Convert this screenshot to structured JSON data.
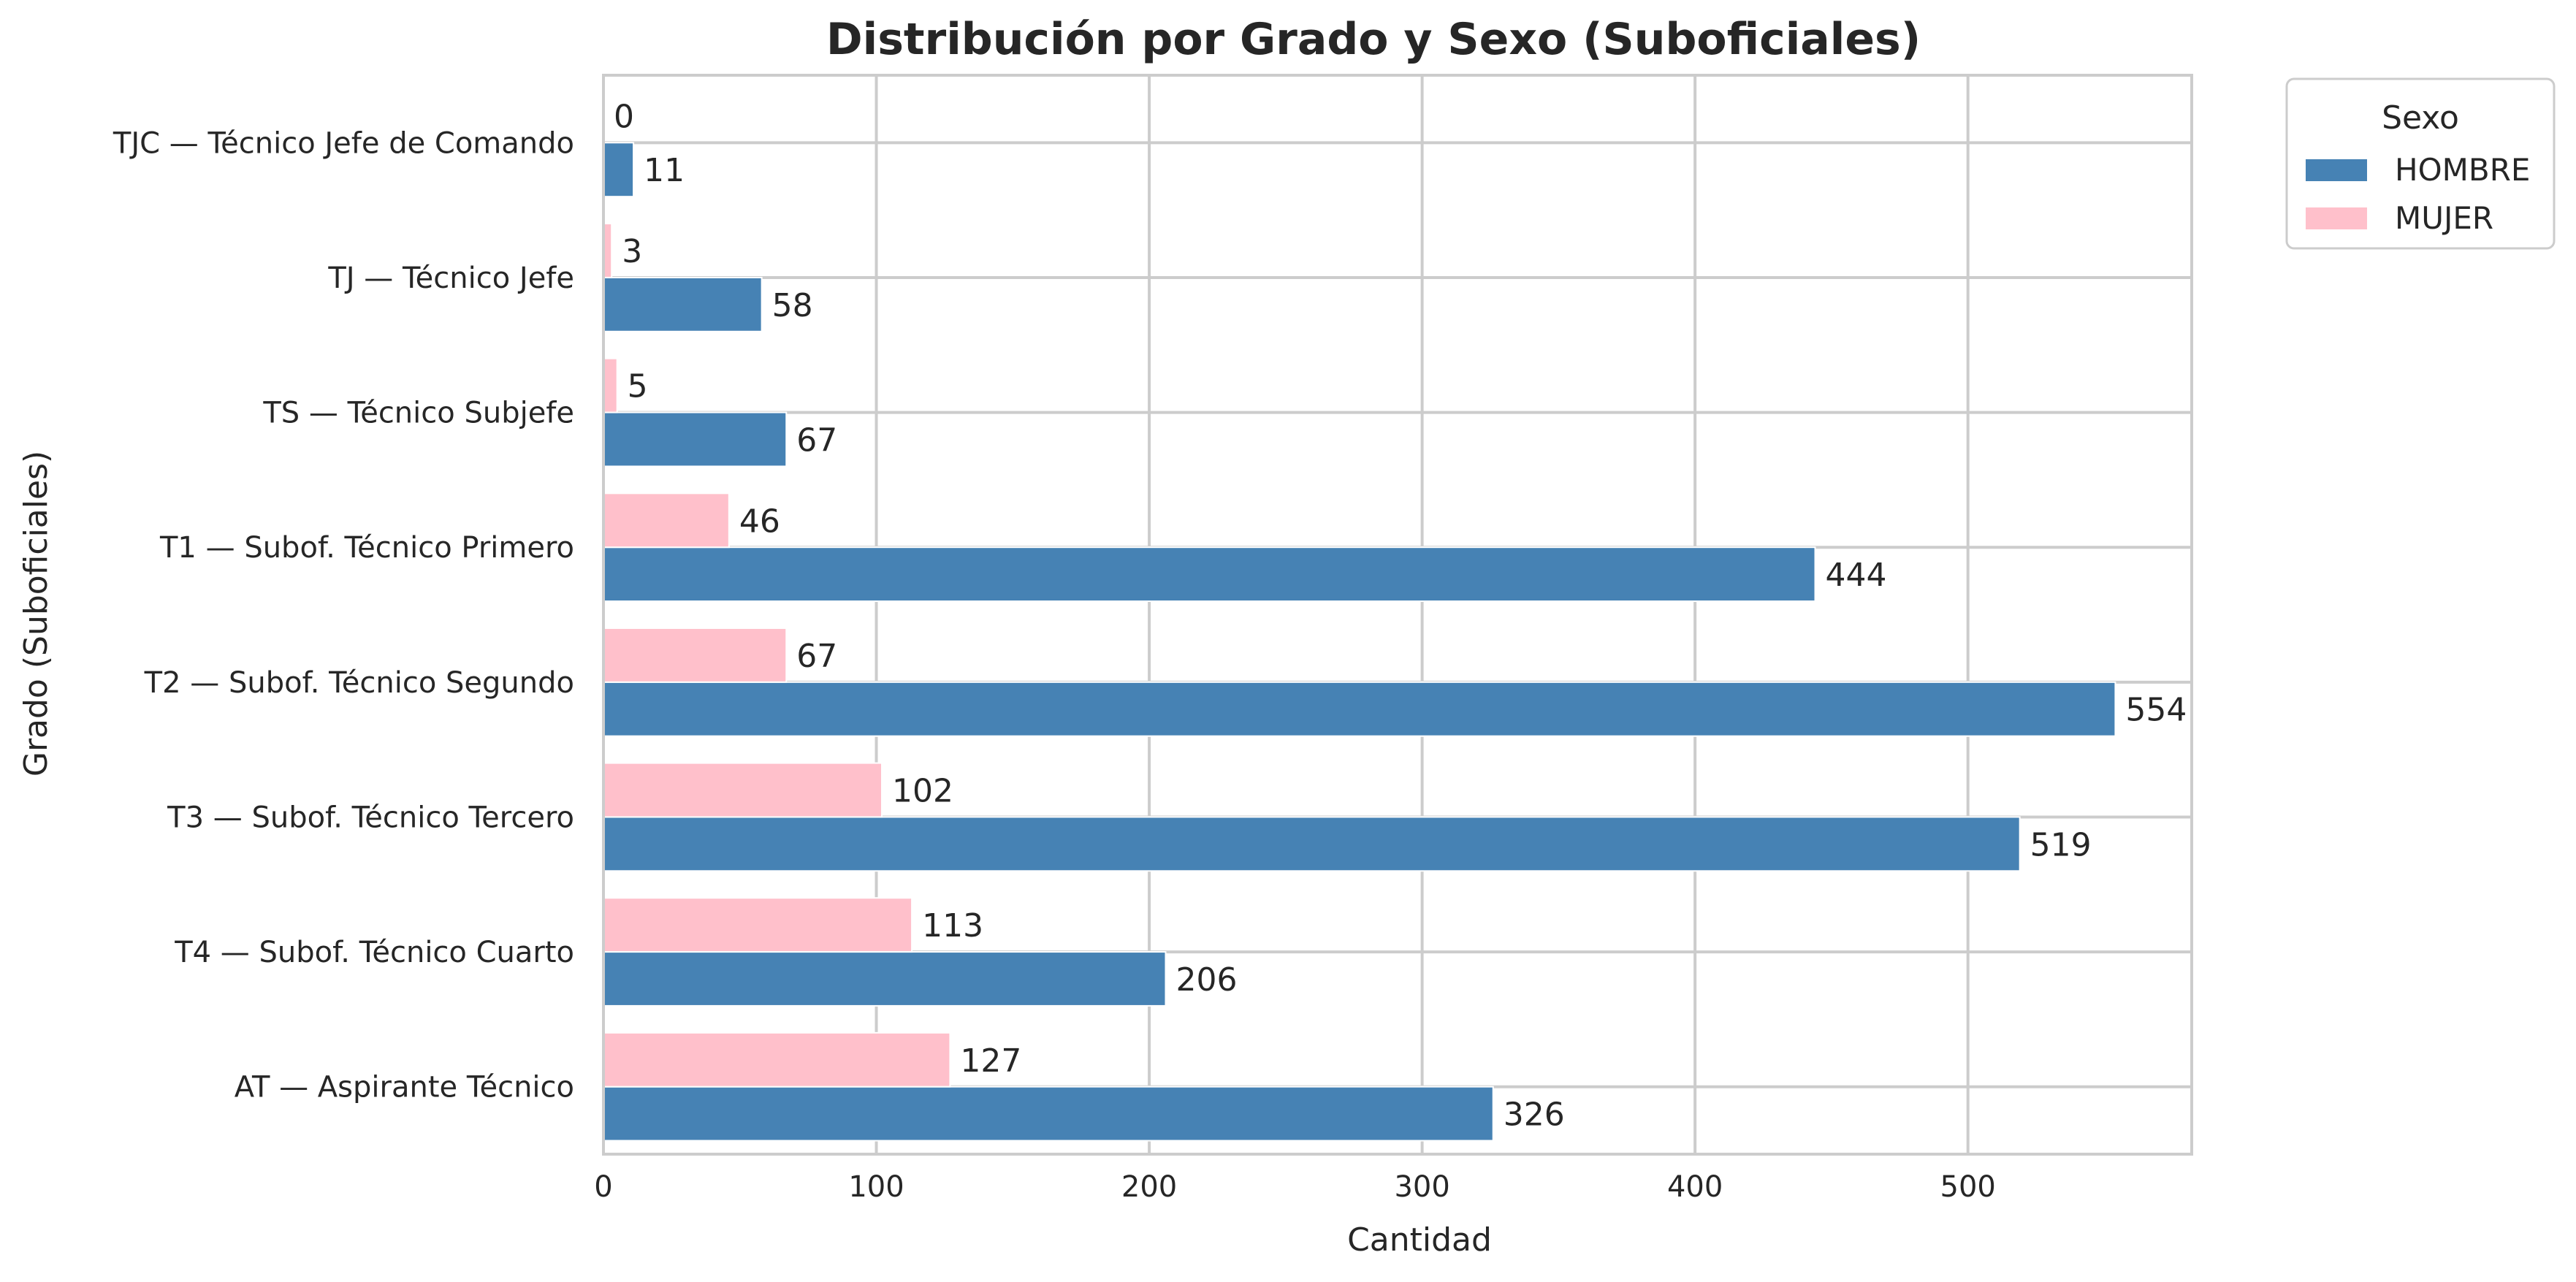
{
  "chart_data": {
    "type": "bar",
    "orientation": "horizontal",
    "title": "Distribución por Grado y Sexo (Suboficiales)",
    "xlabel": "Cantidad",
    "ylabel": "Grado (Suboficiales)",
    "categories": [
      "TJC — Técnico Jefe de Comando",
      "TJ — Técnico Jefe",
      "TS — Técnico Subjefe",
      "T1 — Subof. Técnico Primero",
      "T2 — Subof. Técnico Segundo",
      "T3 — Subof. Técnico Tercero",
      "T4 — Subof. Técnico Cuarto",
      "AT — Aspirante Técnico"
    ],
    "series": [
      {
        "name": "HOMBRE",
        "color": "#4682b4",
        "values": [
          11,
          58,
          67,
          444,
          554,
          519,
          206,
          326
        ]
      },
      {
        "name": "MUJER",
        "color": "#ffc0cb",
        "values": [
          0,
          3,
          5,
          46,
          67,
          102,
          113,
          127
        ]
      }
    ],
    "xlim": [
      0,
      582
    ],
    "xticks": [
      0,
      100,
      200,
      300,
      400,
      500
    ],
    "grid": true,
    "legend": {
      "title": "Sexo",
      "placement": "outside top-right"
    }
  }
}
